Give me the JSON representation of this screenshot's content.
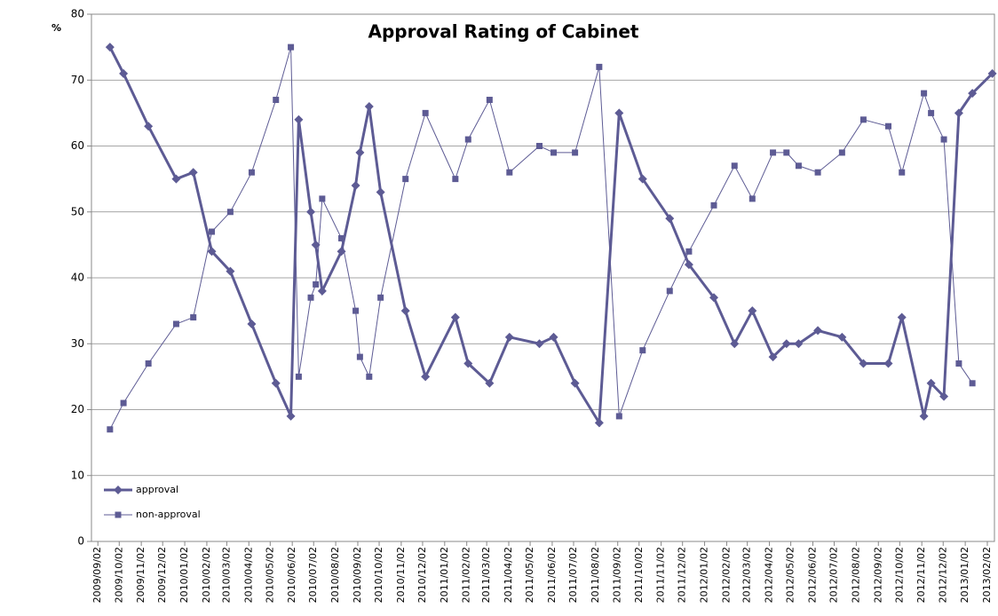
{
  "chart_data": {
    "type": "line",
    "title": "Approval Rating of  Cabinet",
    "y_label": "%",
    "x": [
      "2009/09/19",
      "2009/10/08",
      "2009/11/12",
      "2009/12/21",
      "2010/01/14",
      "2010/02/09",
      "2010/03/07",
      "2010/04/06",
      "2010/05/10",
      "2010/05/31",
      "2010/06/11",
      "2010/06/28",
      "2010/07/05",
      "2010/07/14",
      "2010/08/10",
      "2010/08/30",
      "2010/09/05",
      "2010/09/18",
      "2010/10/04",
      "2010/11/08",
      "2010/12/06",
      "2011/01/17",
      "2011/02/04",
      "2011/03/06",
      "2011/04/03",
      "2011/05/15",
      "2011/06/04",
      "2011/07/04",
      "2011/08/07",
      "2011/09/04",
      "2011/10/07",
      "2011/11/14",
      "2011/12/11",
      "2012/01/15",
      "2012/02/13",
      "2012/03/09",
      "2012/04/07",
      "2012/04/26",
      "2012/05/13",
      "2012/06/09",
      "2012/07/13",
      "2012/08/12",
      "2012/09/16",
      "2012/10/05",
      "2012/11/05",
      "2012/11/15",
      "2012/12/03",
      "2012/12/24",
      "2013/01/12",
      "2013/02/09"
    ],
    "series": [
      {
        "name": "approval",
        "color": "#5d5b94",
        "marker": "diamond",
        "values": [
          75,
          71,
          63,
          55,
          56,
          44,
          41,
          33,
          24,
          19,
          64,
          50,
          45,
          38,
          44,
          54,
          59,
          66,
          53,
          35,
          25,
          34,
          27,
          24,
          31,
          30,
          31,
          24,
          18,
          65,
          55,
          49,
          42,
          37,
          30,
          35,
          28,
          30,
          30,
          32,
          31,
          27,
          27,
          34,
          19,
          24,
          22,
          65,
          68,
          71
        ]
      },
      {
        "name": "non-approval",
        "color": "#5d5b94",
        "marker": "square",
        "values": [
          17,
          21,
          27,
          33,
          34,
          47,
          50,
          56,
          67,
          75,
          25,
          37,
          39,
          52,
          46,
          35,
          28,
          25,
          37,
          55,
          65,
          55,
          61,
          67,
          56,
          60,
          59,
          59,
          72,
          19,
          29,
          38,
          44,
          51,
          57,
          52,
          59,
          59,
          57,
          56,
          59,
          64,
          63,
          56,
          68,
          65,
          61,
          27,
          24,
          null
        ]
      }
    ],
    "xlim": [
      "2009/08/24",
      "2013/02/12"
    ],
    "xticks": [
      "2009/09/02",
      "2009/10/02",
      "2009/11/02",
      "2009/12/02",
      "2010/01/02",
      "2010/02/02",
      "2010/03/02",
      "2010/04/02",
      "2010/05/02",
      "2010/06/02",
      "2010/07/02",
      "2010/08/02",
      "2010/09/02",
      "2010/10/02",
      "2010/11/02",
      "2010/12/02",
      "2011/01/02",
      "2011/02/02",
      "2011/03/02",
      "2011/04/02",
      "2011/05/02",
      "2011/06/02",
      "2011/07/02",
      "2011/08/02",
      "2011/09/02",
      "2011/10/02",
      "2011/11/02",
      "2011/12/02",
      "2012/01/02",
      "2012/02/02",
      "2012/03/02",
      "2012/04/02",
      "2012/05/02",
      "2012/06/02",
      "2012/07/02",
      "2012/08/02",
      "2012/09/02",
      "2012/10/02",
      "2012/11/02",
      "2012/12/02",
      "2013/01/02",
      "2013/02/02"
    ],
    "ylim": [
      0,
      80
    ],
    "yticks": [
      0,
      10,
      20,
      30,
      40,
      50,
      60,
      70,
      80
    ],
    "grid": true,
    "legend": "lower-left"
  }
}
